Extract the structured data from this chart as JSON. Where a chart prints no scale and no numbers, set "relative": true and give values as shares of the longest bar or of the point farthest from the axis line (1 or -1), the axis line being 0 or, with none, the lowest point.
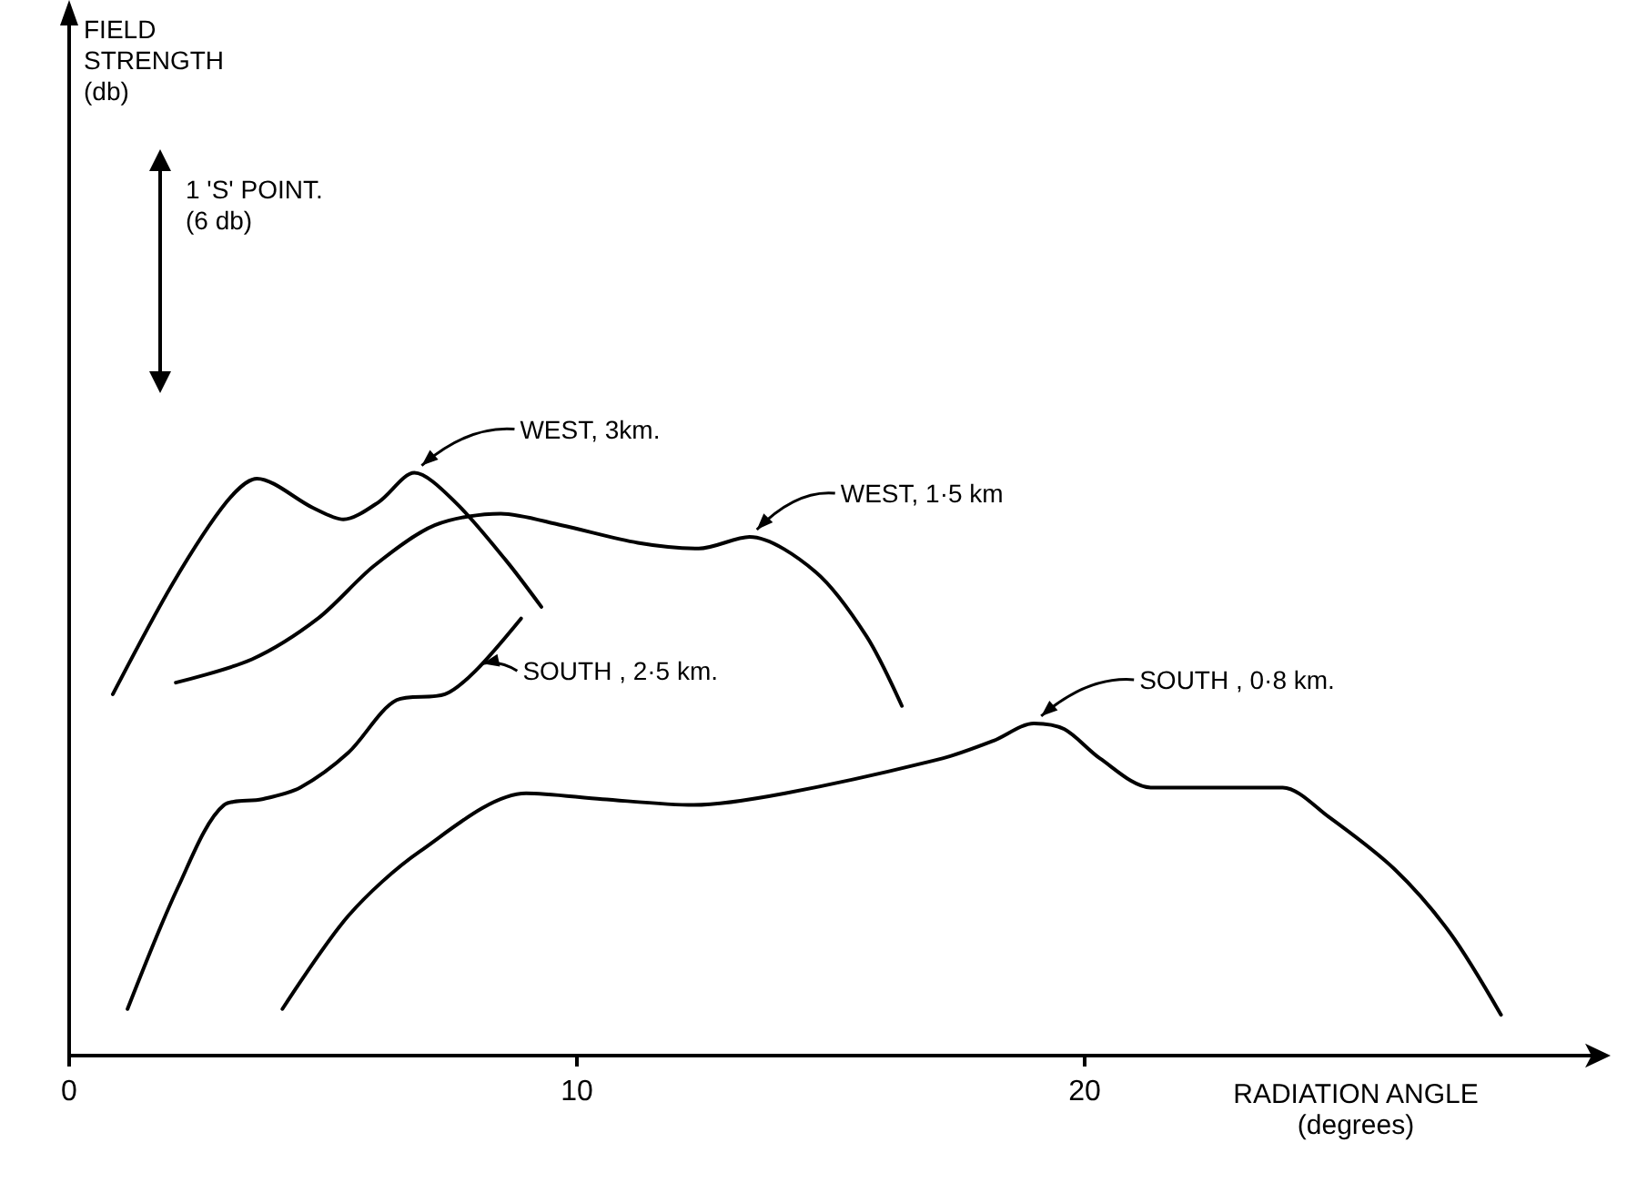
{
  "chart_data": {
    "type": "line",
    "relative": true,
    "xlabel": "RADIATION ANGLE (degrees)",
    "xlim": [
      0,
      30
    ],
    "xticks": [
      0,
      10,
      20
    ],
    "line_style": "solid",
    "marker": "none",
    "annotations": [
      "1 'S' POINT. (6 db)",
      "FIELD STRENGTH (db)"
    ],
    "series": [
      {
        "name": "WEST, 3km.",
        "color": "#000000",
        "x": [
          0.86,
          2.04,
          3.1,
          3.7,
          4.8,
          5.4,
          6.1,
          6.8,
          7.6,
          8.6,
          9.3
        ],
        "values": [
          0.62,
          0.81,
          0.95,
          0.99,
          0.94,
          0.92,
          0.95,
          1.0,
          0.95,
          0.85,
          0.77
        ]
      },
      {
        "name": "WEST, 1·5 km",
        "color": "#000000",
        "x": [
          2.1,
          3.6,
          4.9,
          6.0,
          7.2,
          8.5,
          9.7,
          11.2,
          12.4,
          13.4,
          14.7,
          15.7,
          16.4
        ],
        "values": [
          0.64,
          0.68,
          0.75,
          0.84,
          0.91,
          0.93,
          0.91,
          0.88,
          0.87,
          0.89,
          0.83,
          0.72,
          0.6
        ]
      },
      {
        "name": "SOUTH , 2·5 km.",
        "color": "#000000",
        "x": [
          1.15,
          2.15,
          3.05,
          3.8,
          4.55,
          5.5,
          6.45,
          7.4,
          8.0,
          8.9
        ],
        "values": [
          0.08,
          0.29,
          0.43,
          0.44,
          0.46,
          0.52,
          0.61,
          0.62,
          0.66,
          0.75
        ]
      },
      {
        "name": "SOUTH , 0·8 km.",
        "color": "#000000",
        "x": [
          4.2,
          5.5,
          6.9,
          9.0,
          10.5,
          12.3,
          14.1,
          17.2,
          18.2,
          19.0,
          19.6,
          20.3,
          21.3,
          23.0,
          23.9,
          24.8,
          26.1,
          27.2,
          28.2
        ],
        "values": [
          0.08,
          0.24,
          0.35,
          0.45,
          0.44,
          0.43,
          0.45,
          0.51,
          0.54,
          0.57,
          0.56,
          0.51,
          0.46,
          0.46,
          0.46,
          0.41,
          0.32,
          0.21,
          0.07
        ]
      }
    ]
  }
}
